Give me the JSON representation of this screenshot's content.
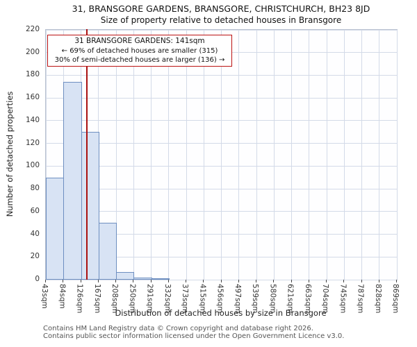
{
  "chart_data": {
    "type": "bar",
    "title": "31, BRANSGORE GARDENS, BRANSGORE, CHRISTCHURCH, BH23 8JD",
    "subtitle": "Size of property relative to detached houses in Bransgore",
    "xlabel": "Distribution of detached houses by size in Bransgore",
    "ylabel": "Number of detached properties",
    "categories": [
      "43sqm",
      "84sqm",
      "126sqm",
      "167sqm",
      "208sqm",
      "250sqm",
      "291sqm",
      "332sqm",
      "373sqm",
      "415sqm",
      "456sqm",
      "497sqm",
      "539sqm",
      "580sqm",
      "621sqm",
      "663sqm",
      "704sqm",
      "745sqm",
      "787sqm",
      "828sqm",
      "869sqm"
    ],
    "values": [
      90,
      174,
      130,
      50,
      7,
      2,
      1,
      0,
      0,
      0,
      0,
      0,
      0,
      0,
      0,
      0,
      0,
      0,
      0,
      0
    ],
    "ylim": [
      0,
      220
    ],
    "ytick_step": 20,
    "x_range_sqm": [
      43,
      869
    ],
    "grid": "on",
    "marker": {
      "value_sqm": 141
    },
    "annotation": {
      "line1": "31 BRANSGORE GARDENS: 141sqm",
      "line2": "← 69% of detached houses are smaller (315)",
      "line3": "30% of semi-detached houses are larger (136) →"
    },
    "colors": {
      "bar_fill": "#d8e3f4",
      "bar_border": "#6d8ec0",
      "grid": "#d3dae8",
      "marker_line": "#aa1111",
      "annotation_border": "#bb1111"
    }
  },
  "footer": {
    "line1": "Contains HM Land Registry data © Crown copyright and database right 2026.",
    "line2": "Contains public sector information licensed under the Open Government Licence v3.0."
  }
}
